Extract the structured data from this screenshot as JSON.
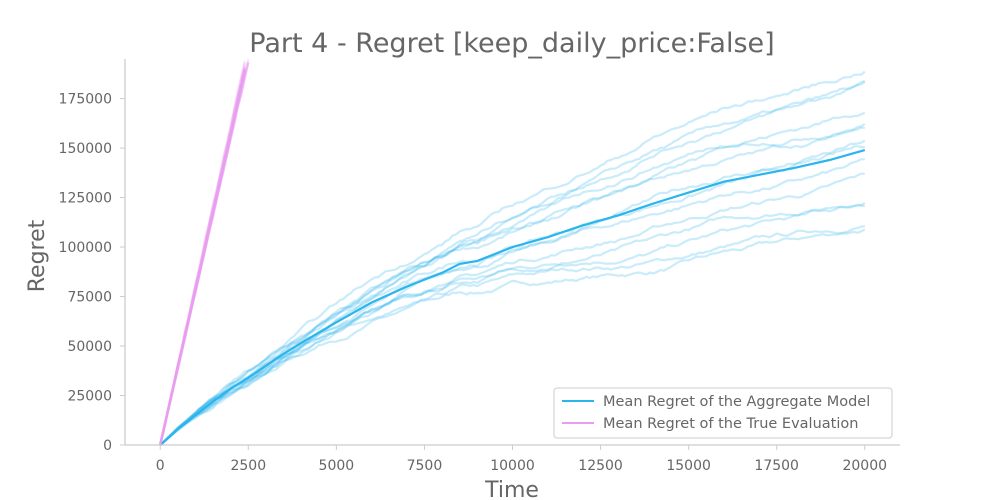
{
  "chart_data": {
    "type": "line",
    "title": "Part 4 - Regret [keep_daily_price:False]",
    "xlabel": "Time",
    "ylabel": "Regret",
    "xlim": [
      -1000,
      21000
    ],
    "ylim": [
      0,
      195000
    ],
    "xticks": [
      "0",
      "2500",
      "5000",
      "7500",
      "10000",
      "12500",
      "15000",
      "17500",
      "20000"
    ],
    "yticks": [
      "0",
      "25000",
      "50000",
      "75000",
      "100000",
      "125000",
      "150000",
      "175000"
    ],
    "grid": false,
    "legend_position": "lower-right",
    "series": [
      {
        "name": "Mean Regret of the Aggregate Model",
        "color": "#2bb5ec",
        "x": [
          0,
          250,
          500,
          1000,
          1500,
          2000,
          2500,
          3000,
          3500,
          4000,
          5000,
          6000,
          7000,
          8000,
          8500,
          9000,
          10000,
          11000,
          12000,
          13000,
          14000,
          15000,
          16000,
          17000,
          18000,
          19000,
          20000
        ],
        "y": [
          0,
          4000,
          8000,
          15000,
          22000,
          28500,
          34000,
          40000,
          46000,
          51500,
          62000,
          72000,
          80000,
          87000,
          91500,
          93000,
          100000,
          105000,
          111000,
          116000,
          122000,
          127500,
          133000,
          136500,
          140000,
          144000,
          149000
        ]
      },
      {
        "name": "Mean Regret of the True Evaluation",
        "color": "#e99cf0",
        "x": [
          0,
          500,
          1000,
          1500,
          2000,
          2400
        ],
        "y": [
          0,
          40000,
          79000,
          118000,
          157000,
          190000
        ]
      }
    ],
    "run_spread": {
      "aggregate_final_values_at_20000": [
        107000,
        110000,
        120000,
        125000,
        135000,
        141000,
        148000,
        152000,
        158000,
        165000,
        172000,
        177000,
        185000,
        190000
      ],
      "aggregate_run_color": "#2bb5ec",
      "true_run_color": "#e99cf0"
    }
  }
}
